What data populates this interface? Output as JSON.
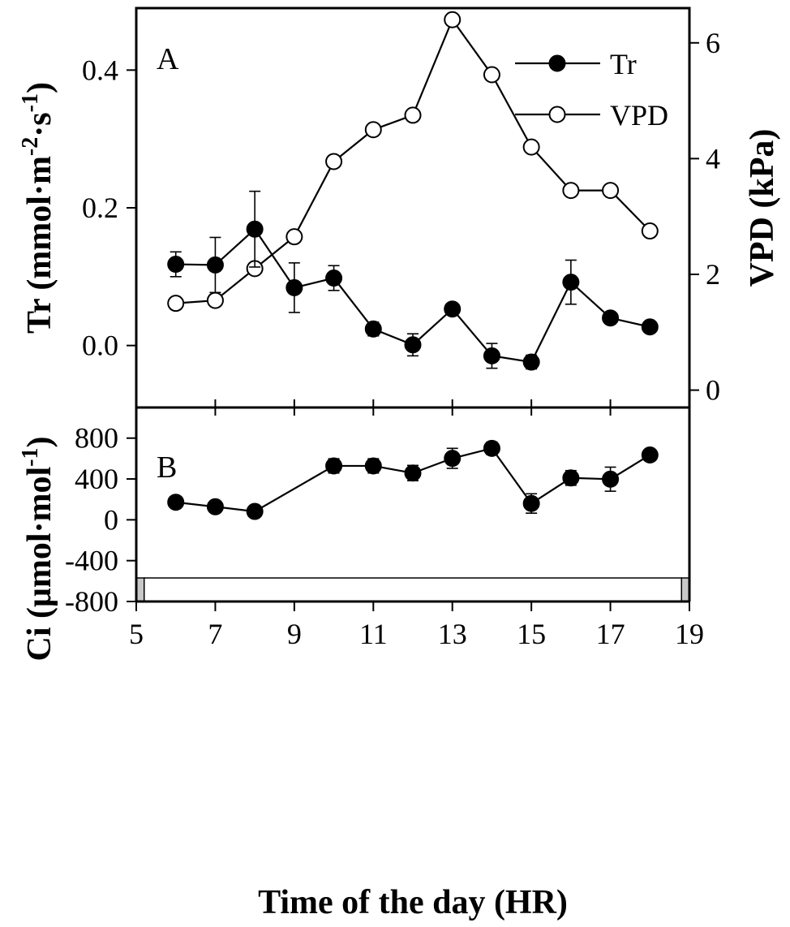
{
  "chart_data": [
    {
      "panel": "A",
      "type": "line",
      "x": [
        6,
        7,
        8,
        9,
        10,
        11,
        12,
        13,
        14,
        15,
        16,
        17,
        18
      ],
      "xlim": [
        5,
        19
      ],
      "xticks": [
        5,
        7,
        9,
        11,
        13,
        15,
        17,
        19
      ],
      "ylabel_parts": {
        "main": "Tr (mmol·m",
        "sup1": "-2",
        "mid": "·s",
        "sup2": "-1",
        "end": ")"
      },
      "ylim": [
        -0.09,
        0.49
      ],
      "yticks": [
        0.0,
        0.2,
        0.4
      ],
      "ytick_labels": [
        "0.0",
        "0.2",
        "0.4"
      ],
      "y2label": "VPD (kPa)",
      "y2lim": [
        -0.3,
        6.6
      ],
      "y2ticks": [
        0,
        2,
        4,
        6
      ],
      "y2tick_labels": [
        "0",
        "2",
        "4",
        "6"
      ],
      "series": [
        {
          "name": "Tr",
          "axis": "left",
          "marker": "filled-circle",
          "values": [
            0.118,
            0.117,
            0.169,
            0.084,
            0.098,
            0.024,
            0.001,
            0.053,
            -0.015,
            -0.024,
            0.092,
            0.04,
            0.027
          ],
          "errors": [
            0.018,
            0.04,
            0.055,
            0.036,
            0.018,
            0.01,
            0.016,
            0.0,
            0.018,
            0.01,
            0.032,
            0.0,
            0.0
          ]
        },
        {
          "name": "VPD",
          "axis": "right",
          "marker": "open-circle",
          "values": [
            1.5,
            1.55,
            2.1,
            2.65,
            3.95,
            4.5,
            4.75,
            6.4,
            5.45,
            4.2,
            3.45,
            3.45,
            2.75
          ]
        }
      ],
      "legend": "top-right"
    },
    {
      "panel": "B",
      "type": "line",
      "x": [
        6,
        7,
        8,
        10,
        11,
        12,
        13,
        14,
        15,
        16,
        17,
        18
      ],
      "xlim": [
        5,
        19
      ],
      "xticks": [
        5,
        7,
        9,
        11,
        13,
        15,
        17,
        19
      ],
      "xtick_labels": [
        "5",
        "7",
        "9",
        "11",
        "13",
        "15",
        "17",
        "19"
      ],
      "xlabel": "Time of the day (HR)",
      "ylabel_parts": {
        "main": "Ci (μmol·mol",
        "sup1": "-1",
        "end": ")"
      },
      "ylim": [
        -800,
        1100
      ],
      "yticks": [
        -800,
        -400,
        0,
        400,
        800
      ],
      "ytick_labels": [
        "-800",
        "-400",
        "0",
        "400",
        "800"
      ],
      "series": [
        {
          "name": "Ci",
          "marker": "filled-circle",
          "values": [
            172,
            128,
            82,
            528,
            528,
            458,
            602,
            700,
            160,
            410,
            398,
            635
          ],
          "errors": [
            0,
            40,
            30,
            70,
            70,
            75,
            98,
            62,
            95,
            72,
            118,
            0
          ]
        }
      ],
      "daylight_bar": {
        "dark_start": [
          5.0,
          5.2
        ],
        "light": [
          5.2,
          18.8
        ],
        "dark_end": [
          18.8,
          19.0
        ],
        "dark_color": "#c8c8c8",
        "light_color": "#ffffff"
      }
    }
  ]
}
